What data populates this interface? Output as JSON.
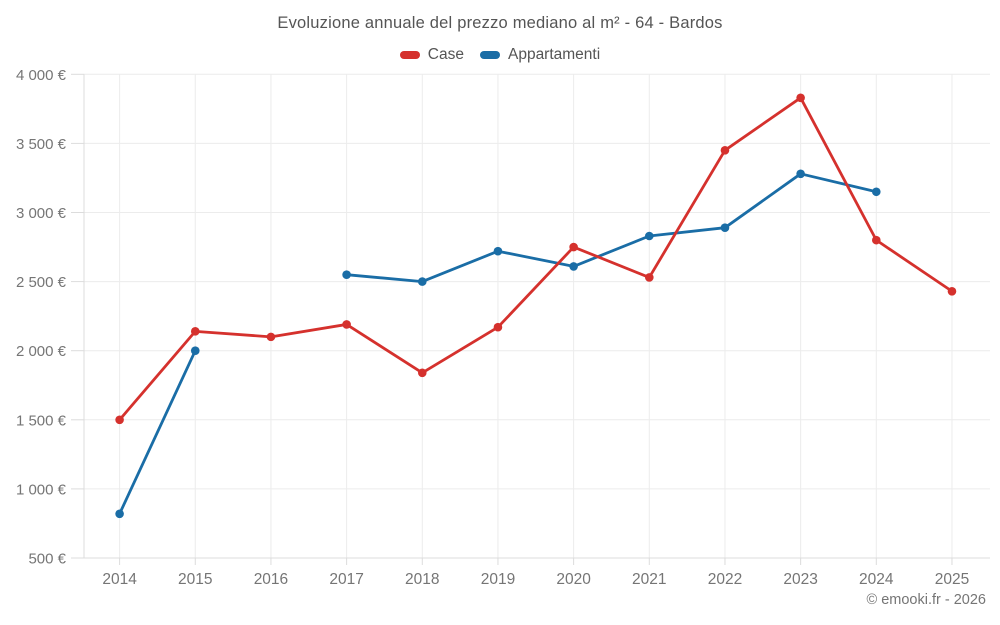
{
  "chart_data": {
    "type": "line",
    "title": "Evoluzione annuale del prezzo mediano al m² - 64 - Bardos",
    "categories": [
      "2014",
      "2015",
      "2016",
      "2017",
      "2018",
      "2019",
      "2020",
      "2021",
      "2022",
      "2023",
      "2024",
      "2025"
    ],
    "series": [
      {
        "name": "Case",
        "color": "#d5312d",
        "values": [
          1500,
          2140,
          2100,
          2190,
          1840,
          2170,
          2750,
          2530,
          3450,
          3830,
          2800,
          2430
        ]
      },
      {
        "name": "Appartamenti",
        "color": "#1a6da6",
        "values": [
          820,
          2000,
          null,
          2550,
          2500,
          2720,
          2610,
          2830,
          2890,
          3280,
          3150,
          null
        ]
      }
    ],
    "ylim": [
      500,
      4000
    ],
    "y_ticks": [
      500,
      1000,
      1500,
      2000,
      2500,
      3000,
      3500,
      4000
    ],
    "y_tick_labels": [
      "500 €",
      "1 000 €",
      "1 500 €",
      "2 000 €",
      "2 500 €",
      "3 000 €",
      "3 500 €",
      "4 000 €"
    ],
    "unit": "€",
    "grid": true,
    "legend_position": "top"
  },
  "footer": "© emooki.fr - 2026"
}
